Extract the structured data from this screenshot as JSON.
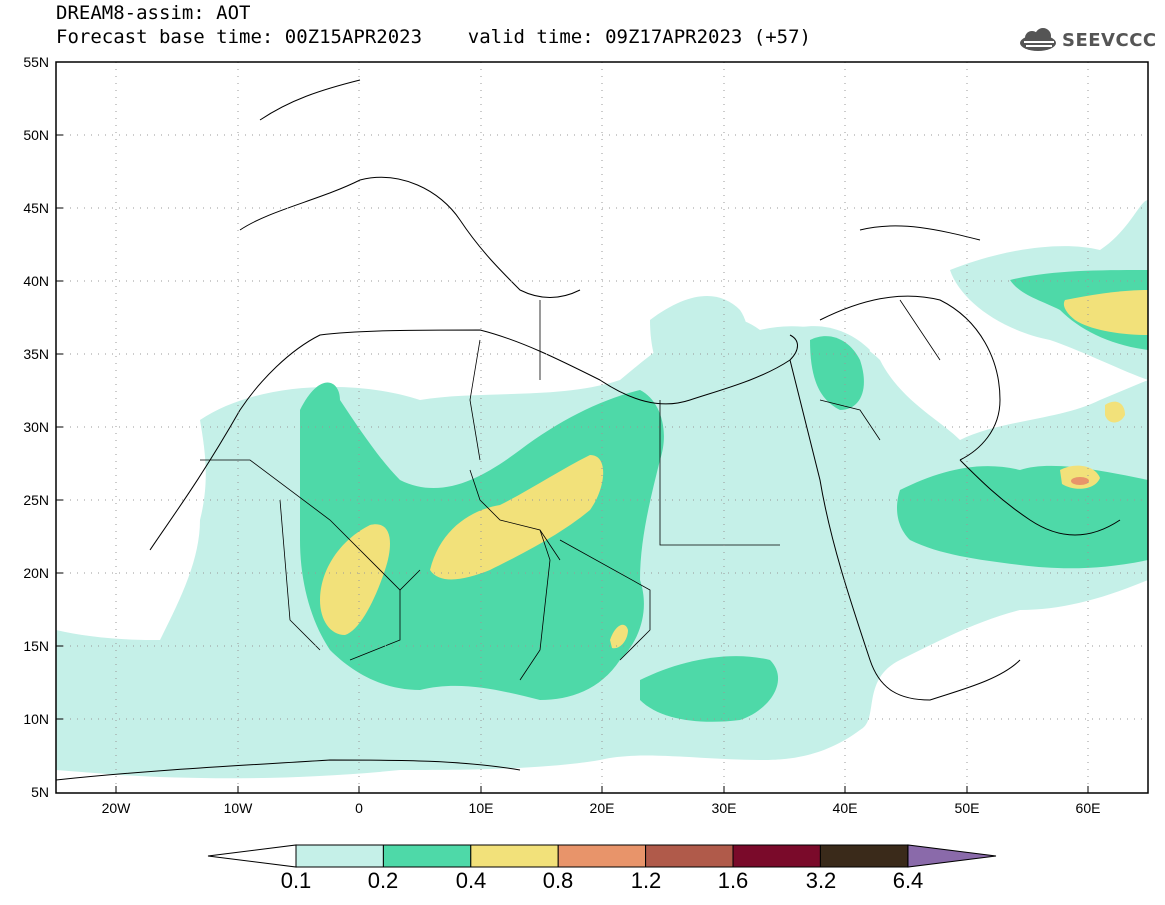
{
  "title": {
    "line1": "DREAM8-assim: AOT",
    "line2": "Forecast base time: 00Z15APR2023    valid time: 09Z17APR2023 (+57)"
  },
  "logo": {
    "text": "SEEVCCC",
    "icon": "cloud-icon",
    "color": "#555555"
  },
  "map": {
    "lat_ticks": [
      "55N",
      "50N",
      "45N",
      "40N",
      "35N",
      "30N",
      "25N",
      "20N",
      "15N",
      "10N",
      "5N"
    ],
    "lon_ticks": [
      "20W",
      "10W",
      "0",
      "10E",
      "20E",
      "30E",
      "40E",
      "50E",
      "60E"
    ],
    "lat_range": [
      5,
      55
    ],
    "lon_range": [
      -25,
      65
    ]
  },
  "legend": {
    "labels": [
      "0.1",
      "0.2",
      "0.4",
      "0.8",
      "1.2",
      "1.6",
      "3.2",
      "6.4"
    ],
    "colors": [
      "#c5f0e8",
      "#4ed9a8",
      "#f2e17a",
      "#e8946a",
      "#b05a4a",
      "#7a0a2a",
      "#3a2a1a",
      "#8a6aaa"
    ]
  }
}
